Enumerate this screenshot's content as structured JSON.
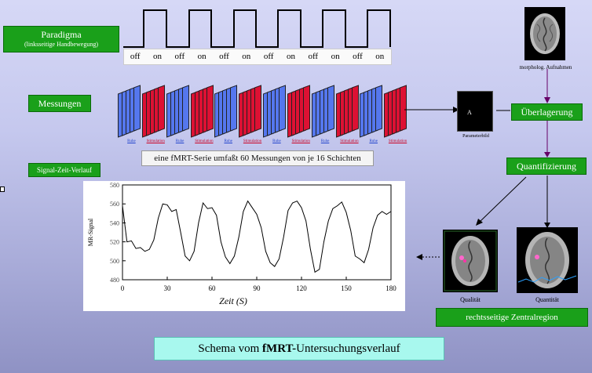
{
  "paradigm": {
    "title": "Paradigma",
    "subtitle": "(linksseitige Handbewegung)",
    "states": [
      "off",
      "on",
      "off",
      "on",
      "off",
      "on",
      "off",
      "on",
      "off",
      "on",
      "off",
      "on"
    ]
  },
  "measurements": {
    "label": "Messungen",
    "block_labels": [
      "Ruhe",
      "Stimulation",
      "Ruhe",
      "Stimulation",
      "Ruhe",
      "Stimulation",
      "Ruhe",
      "Stimulation",
      "Ruhe",
      "Stimulation",
      "Ruhe",
      "Stimulation"
    ],
    "series_caption": "eine fMRT-Serie umfaßt 60 Messungen von je 16 Schichten"
  },
  "signal_label": "Signal-Zeit-Verlauf",
  "morphology_label": "morpholog. Aufnahmen",
  "parameter_map_label": "Parameterbild",
  "parameter_map_symbol": "A",
  "overlay_label": "Überlagerung",
  "quantify_label": "Quantifizierung",
  "qualitative_label": "Qualität",
  "quantitative_label": "Quantität",
  "region_label": "rechtsseitige Zentralregion",
  "schema_title_pre": "Schema vom ",
  "schema_title_bold": "fMRT-",
  "schema_title_post": "Untersuchungsverlauf",
  "colors": {
    "green": "#1aa01a",
    "rest": "#5577ee",
    "stim": "#dd1133",
    "cyan": "#a8f8ee"
  },
  "chart_data": {
    "type": "line",
    "xlabel": "Zeit (S)",
    "ylabel": "MR-Signal",
    "xlim": [
      0,
      180
    ],
    "ylim": [
      480,
      580
    ],
    "xticks": [
      0,
      30,
      60,
      90,
      120,
      150,
      180
    ],
    "yticks": [
      480,
      500,
      520,
      540,
      560,
      580
    ],
    "x": [
      0,
      3,
      6,
      9,
      12,
      15,
      18,
      21,
      24,
      27,
      30,
      33,
      36,
      39,
      42,
      45,
      48,
      51,
      54,
      57,
      60,
      63,
      66,
      69,
      72,
      75,
      78,
      81,
      84,
      87,
      90,
      93,
      96,
      99,
      102,
      105,
      108,
      111,
      114,
      117,
      120,
      123,
      126,
      129,
      132,
      135,
      138,
      141,
      144,
      147,
      150,
      153,
      156,
      159,
      162,
      165,
      168,
      171,
      174,
      177,
      180
    ],
    "values": [
      558,
      520,
      521,
      513,
      514,
      510,
      512,
      522,
      545,
      560,
      559,
      552,
      554,
      530,
      505,
      500,
      510,
      540,
      561,
      555,
      556,
      548,
      520,
      504,
      497,
      505,
      525,
      552,
      563,
      556,
      549,
      535,
      510,
      498,
      494,
      502,
      525,
      553,
      561,
      563,
      556,
      542,
      512,
      488,
      491,
      520,
      542,
      555,
      558,
      562,
      551,
      532,
      505,
      502,
      498,
      512,
      535,
      548,
      552,
      549,
      552
    ]
  }
}
